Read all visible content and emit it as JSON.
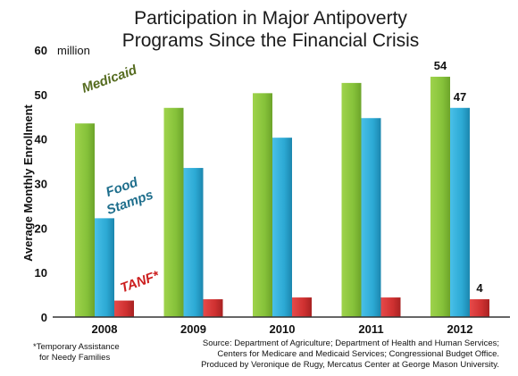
{
  "chart_data": {
    "type": "bar",
    "title_lines": [
      "Participation in Major Antipoverty",
      "Programs Since the Financial Crisis"
    ],
    "unit_label": "million",
    "ylabel": "Average Monthly Enrollment",
    "ylim": [
      0,
      60
    ],
    "yticks": [
      "0",
      "10",
      "20",
      "30",
      "40",
      "50",
      "60"
    ],
    "categories": [
      "2008",
      "2009",
      "2010",
      "2011",
      "2012"
    ],
    "series": [
      {
        "name": "Medicaid",
        "values": [
          43.5,
          47,
          50.3,
          52.6,
          54
        ],
        "color": "#8cc43c"
      },
      {
        "name": "Food Stamps",
        "values": [
          22.2,
          33.5,
          40.3,
          44.7,
          47
        ],
        "color": "#2eaad6"
      },
      {
        "name": "TANF*",
        "values": [
          3.7,
          4.0,
          4.4,
          4.4,
          4
        ],
        "color": "#d23333"
      }
    ],
    "data_labels": [
      {
        "text": "54"
      },
      {
        "text": "47"
      },
      {
        "text": "4"
      }
    ],
    "series_label_colors": [
      "#556b1f",
      "#1e6e8c",
      "#cc1f1f"
    ],
    "footnote_lines": [
      "*Temporary Assistance",
      "for Needy Families"
    ],
    "source_lines": [
      "Source: Department of Agriculture; Department of Health and Human Services;",
      "Centers for Medicare and Medicaid Services; Congressional Budget Office.",
      "Produced by Veronique de Rugy, Mercatus Center at George Mason University."
    ]
  }
}
